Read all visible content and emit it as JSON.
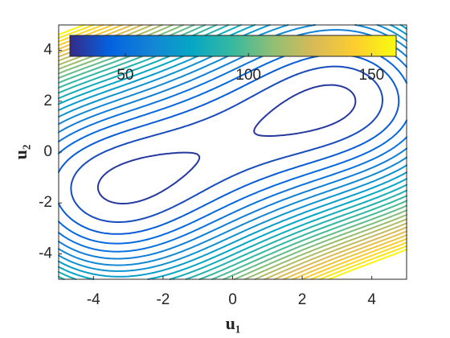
{
  "chart_data": {
    "type": "contour",
    "xlabel": "u₁",
    "ylabel": "u₂",
    "xlim": [
      -5,
      5
    ],
    "ylim": [
      -5,
      5
    ],
    "xticks": [
      -4,
      -2,
      0,
      2,
      4
    ],
    "yticks": [
      -4,
      -2,
      0,
      2,
      4
    ],
    "levels": [
      32,
      37,
      42,
      47,
      52,
      57,
      62,
      67,
      72,
      77,
      82,
      87,
      92,
      97,
      102,
      107,
      112,
      117,
      122,
      127,
      132,
      137,
      142,
      147,
      152,
      157
    ],
    "colorbar": {
      "clim": [
        27.5,
        160
      ],
      "ticks": [
        50,
        100,
        150
      ],
      "location": "north-inside"
    },
    "colormap": [
      "#352a87",
      "#0363e1",
      "#1485d4",
      "#06a7c6",
      "#38b99e",
      "#92bf73",
      "#d9ba56",
      "#fcce2e",
      "#f9fb0e"
    ]
  }
}
